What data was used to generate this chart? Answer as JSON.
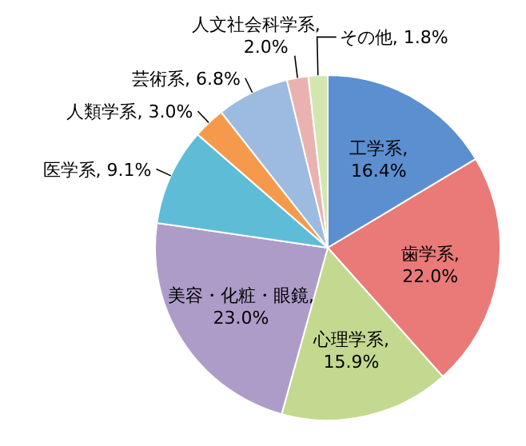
{
  "chart_data": {
    "type": "pie",
    "categories": [
      "工学系",
      "歯学系",
      "心理学系",
      "美容・化粧・眼鏡",
      "医学系",
      "人類学系",
      "芸術系",
      "人文社会科学系",
      "その他"
    ],
    "values": [
      16.4,
      22.0,
      15.9,
      23.0,
      9.1,
      3.0,
      6.8,
      2.0,
      1.8
    ],
    "value_labels": [
      ", 16.4%",
      ", 22.0%",
      ", 15.9%",
      ", 23.0%",
      ", 9.1%",
      ", 3.0%",
      ", 6.8%",
      ", 2.0%",
      ", 1.8%"
    ],
    "colors": [
      "#5b8fd0",
      "#e97a78",
      "#c3d98f",
      "#ae9cc8",
      "#5fbcd6",
      "#f59a4c",
      "#9dbbe0",
      "#e9b2b0",
      "#d3e6b0"
    ],
    "legend": false
  }
}
